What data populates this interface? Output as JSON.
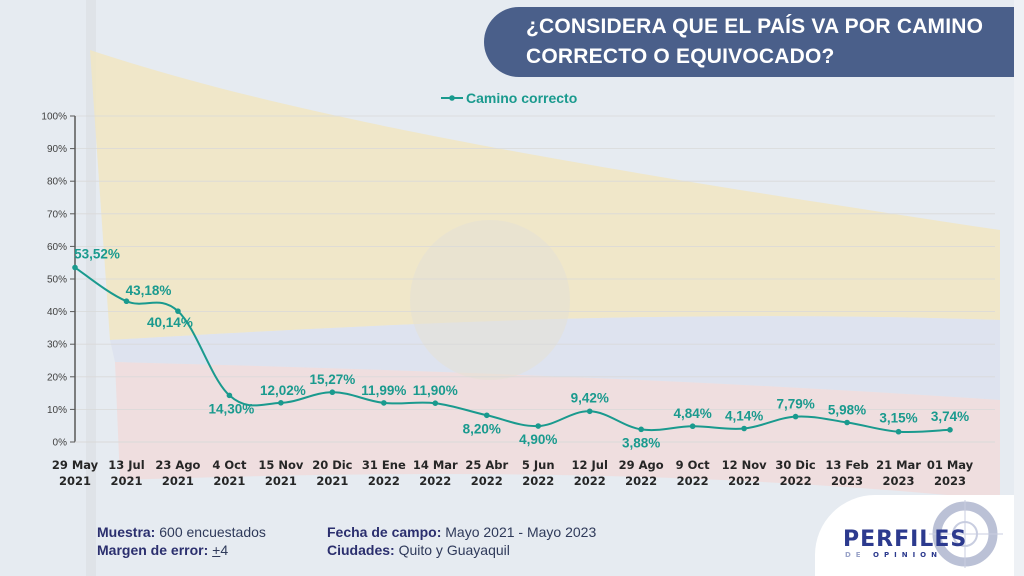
{
  "title": "¿CONSIDERA QUE EL PAÍS VA POR CAMINO CORRECTO O EQUIVOCADO?",
  "colors": {
    "series": "#1a9a8e",
    "title_bg": "#4a5f8a",
    "axis": "#595959",
    "grid": "#d9d9d9",
    "footer_label": "#2b2f6e"
  },
  "chart_data": {
    "type": "line",
    "title": "",
    "xlabel": "",
    "ylabel": "",
    "ylim": [
      0,
      100
    ],
    "yticks": [
      "0%",
      "10%",
      "20%",
      "30%",
      "40%",
      "50%",
      "60%",
      "70%",
      "80%",
      "90%",
      "100%"
    ],
    "grid": true,
    "legend_position": "top-center",
    "categories": [
      [
        "29 May",
        "2021"
      ],
      [
        "13 Jul",
        "2021"
      ],
      [
        "23 Ago",
        "2021"
      ],
      [
        "4 Oct",
        "2021"
      ],
      [
        "15 Nov",
        "2021"
      ],
      [
        "20 Dic",
        "2021"
      ],
      [
        "31 Ene",
        "2022"
      ],
      [
        "14 Mar",
        "2022"
      ],
      [
        "25 Abr",
        "2022"
      ],
      [
        "5 Jun",
        "2022"
      ],
      [
        "12 Jul",
        "2022"
      ],
      [
        "29 Ago",
        "2022"
      ],
      [
        "9 Oct",
        "2022"
      ],
      [
        "12 Nov",
        "2022"
      ],
      [
        "30 Dic",
        "2022"
      ],
      [
        "13 Feb",
        "2023"
      ],
      [
        "21 Mar",
        "2023"
      ],
      [
        "01 May",
        "2023"
      ]
    ],
    "series": [
      {
        "name": "Camino correcto",
        "values": [
          53.52,
          43.18,
          40.14,
          14.3,
          12.02,
          15.27,
          11.99,
          11.9,
          8.2,
          4.9,
          9.42,
          3.88,
          4.84,
          4.14,
          7.79,
          5.98,
          3.15,
          3.74
        ],
        "labels": [
          "53,52%",
          "43,18%",
          "40,14%",
          "14,30%",
          "12,02%",
          "15,27%",
          "11,99%",
          "11,90%",
          "8,20%",
          "4,90%",
          "9,42%",
          "3,88%",
          "4,84%",
          "4,14%",
          "7,79%",
          "5,98%",
          "3,15%",
          "3,74%"
        ],
        "label_side": [
          "above",
          "above",
          "below",
          "below",
          "above",
          "above",
          "above",
          "above",
          "below",
          "below",
          "above",
          "below",
          "above",
          "above",
          "above",
          "above",
          "above",
          "above"
        ]
      }
    ]
  },
  "footer": {
    "muestra_label": "Muestra:",
    "muestra_value": " 600 encuestados",
    "margen_label": "Margen de error:",
    "margen_value_sign": "+",
    "margen_value": "4",
    "fecha_label": "Fecha de campo:",
    "fecha_value": " Mayo 2021 - Mayo 2023",
    "ciudades_label": "Ciudades:",
    "ciudades_value": " Quito y Guayaquil"
  },
  "logo": {
    "word": "PERFILES",
    "sub_light": "DE",
    "sub_dark": "OPINION"
  }
}
